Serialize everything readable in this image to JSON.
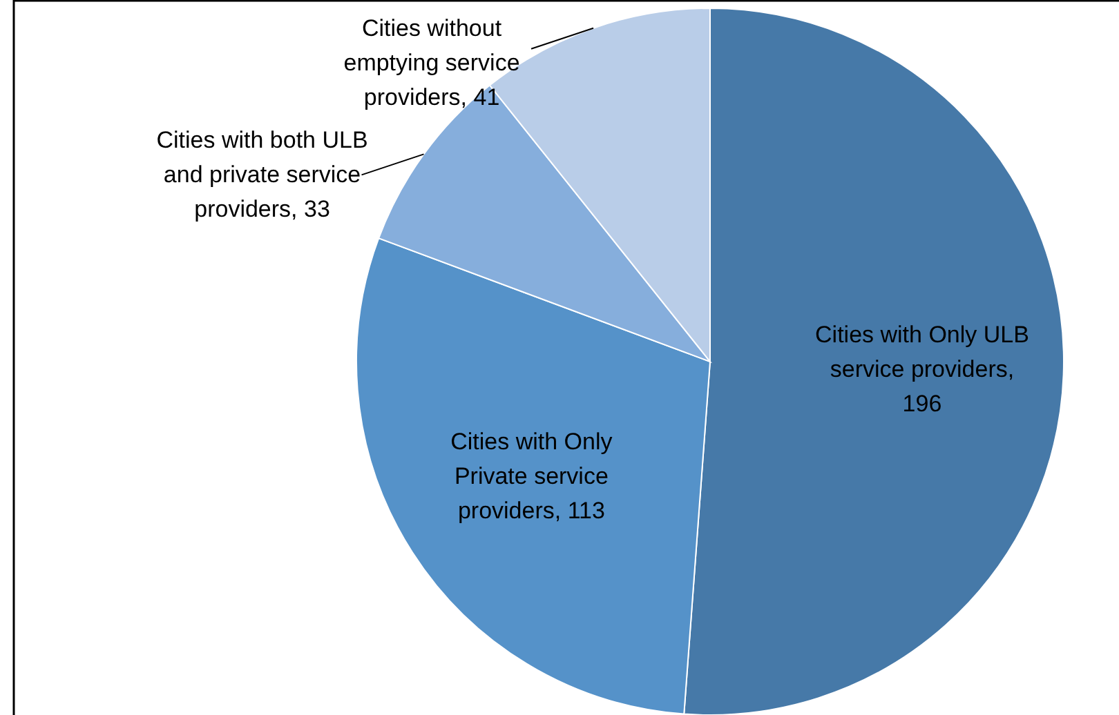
{
  "chart_data": {
    "type": "pie",
    "categories": [
      "Cities with Only ULB service providers",
      "Cities with Only Private service providers",
      "Cities with both ULB and private service providers",
      "Cities without emptying service providers"
    ],
    "values": [
      196,
      113,
      33,
      41
    ],
    "colors": [
      "#4679a8",
      "#5592c9",
      "#86aedc",
      "#b9cde8"
    ],
    "value_labels": [
      ", 196",
      ", 113",
      ", 33",
      ", 41"
    ]
  }
}
